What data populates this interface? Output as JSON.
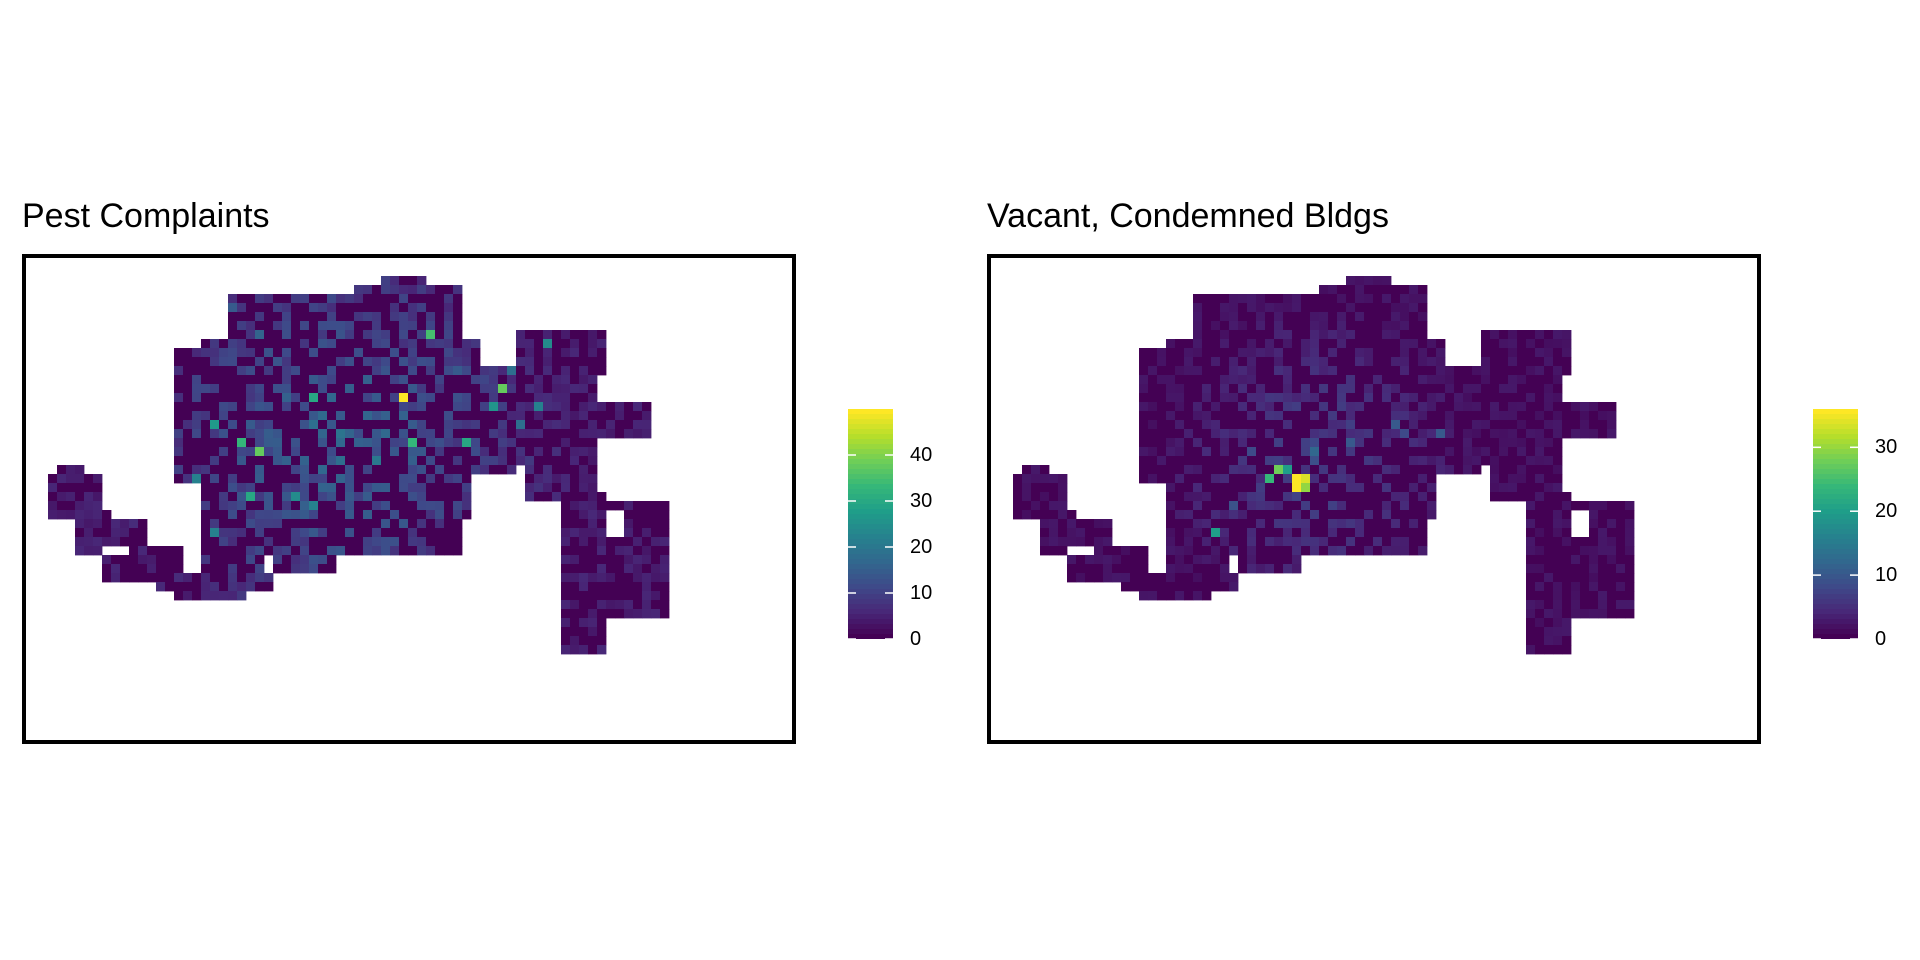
{
  "chart_data": [
    {
      "type": "heatmap",
      "title": "Pest Complaints",
      "xlabel": "",
      "ylabel": "",
      "legend": {
        "ticks": [
          0,
          10,
          20,
          30,
          40
        ],
        "range": [
          0,
          50
        ],
        "placement": "right",
        "colormap": "viridis"
      },
      "grid": false,
      "hotspots": [
        {
          "x": 39.5,
          "y": 13.5,
          "value": 50
        },
        {
          "x": 23.5,
          "y": 19.5,
          "value": 38
        },
        {
          "x": 21.5,
          "y": 18.5,
          "value": 33
        },
        {
          "x": 29.5,
          "y": 13.5,
          "value": 30
        },
        {
          "x": 22.5,
          "y": 24.5,
          "value": 30
        },
        {
          "x": 42.5,
          "y": 6.5,
          "value": 35
        },
        {
          "x": 40.5,
          "y": 18.5,
          "value": 33
        },
        {
          "x": 46.5,
          "y": 18.5,
          "value": 30
        },
        {
          "x": 50.5,
          "y": 12.5,
          "value": 38
        },
        {
          "x": 49.5,
          "y": 14.5,
          "value": 26
        },
        {
          "x": 18.5,
          "y": 16.5,
          "value": 27
        },
        {
          "x": 18.5,
          "y": 28.5,
          "value": 22
        },
        {
          "x": 27.5,
          "y": 24.5,
          "value": 24
        },
        {
          "x": 29.5,
          "y": 25.5,
          "value": 22
        },
        {
          "x": 16.5,
          "y": 22.5,
          "value": 22
        },
        {
          "x": 15.5,
          "y": 26.5,
          "value": 30
        },
        {
          "x": 36.5,
          "y": 20.5,
          "value": 20
        },
        {
          "x": 54.5,
          "y": 14.5,
          "value": 22
        },
        {
          "x": 51.5,
          "y": 10.5,
          "value": 18
        },
        {
          "x": 58.5,
          "y": 3.5,
          "value": 16
        },
        {
          "x": 52.5,
          "y": 16.5,
          "value": 18
        },
        {
          "x": 55.5,
          "y": 7.5,
          "value": 24
        },
        {
          "x": 23.5,
          "y": 6.5,
          "value": 16
        },
        {
          "x": 20.5,
          "y": 3.5,
          "value": 14
        },
        {
          "x": 33.5,
          "y": 17.5,
          "value": 16
        },
        {
          "x": 36.5,
          "y": 13.5,
          "value": 14
        },
        {
          "x": 45.5,
          "y": 10.5,
          "value": 14
        }
      ]
    },
    {
      "type": "heatmap",
      "title": "Vacant, Condemned Bldgs",
      "xlabel": "",
      "ylabel": "",
      "legend": {
        "ticks": [
          0,
          10,
          20,
          30
        ],
        "range": [
          0,
          36
        ],
        "placement": "right",
        "colormap": "viridis"
      },
      "grid": false,
      "hotspots": [
        {
          "x": 31.5,
          "y": 22.5,
          "value": 36
        },
        {
          "x": 32.5,
          "y": 22.5,
          "value": 34
        },
        {
          "x": 31.5,
          "y": 23.5,
          "value": 36
        },
        {
          "x": 32.5,
          "y": 23.5,
          "value": 30
        },
        {
          "x": 29.5,
          "y": 21.5,
          "value": 28
        },
        {
          "x": 28.5,
          "y": 22.5,
          "value": 24
        },
        {
          "x": 30.5,
          "y": 21.5,
          "value": 20
        },
        {
          "x": 22.5,
          "y": 28.5,
          "value": 20
        },
        {
          "x": 33.5,
          "y": 19.5,
          "value": 12
        },
        {
          "x": 37.5,
          "y": 18.5,
          "value": 10
        },
        {
          "x": 42.5,
          "y": 16.5,
          "value": 10
        },
        {
          "x": 43.5,
          "y": 17.5,
          "value": 8
        },
        {
          "x": 47.5,
          "y": 17.5,
          "value": 10
        },
        {
          "x": 26.5,
          "y": 19.5,
          "value": 8
        },
        {
          "x": 24.5,
          "y": 25.5,
          "value": 9
        }
      ]
    }
  ]
}
